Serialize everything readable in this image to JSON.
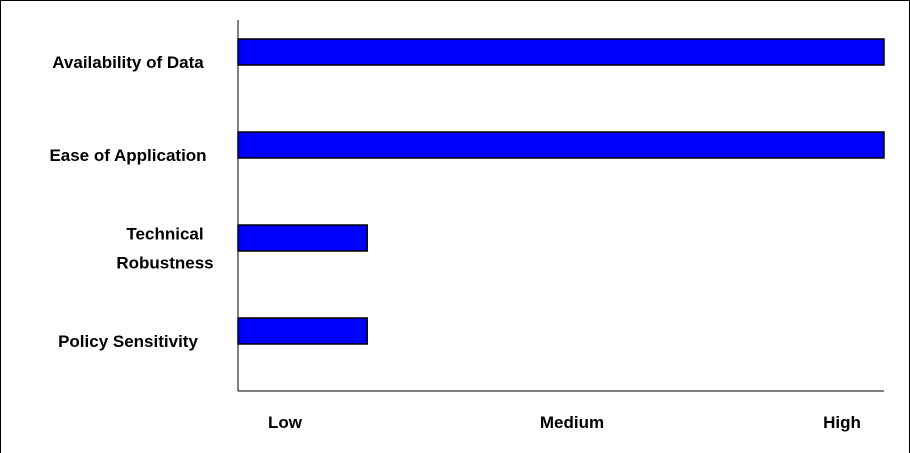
{
  "chart_data": {
    "type": "bar",
    "orientation": "horizontal",
    "title": "",
    "xlabel": "",
    "ylabel": "",
    "categories": [
      [
        "Availability of Data"
      ],
      [
        "Ease of Application"
      ],
      [
        "Technical",
        "Robustness"
      ],
      [
        "Policy Sensitivity"
      ]
    ],
    "values": [
      1.0,
      1.0,
      0.2,
      0.2
    ],
    "x_ticks": [
      "Low",
      "Medium",
      "High"
    ],
    "xlim": [
      0,
      1
    ],
    "grid": false,
    "legend": "none",
    "bar_color": "#0000FF",
    "bar_edge_color": "#000000"
  }
}
